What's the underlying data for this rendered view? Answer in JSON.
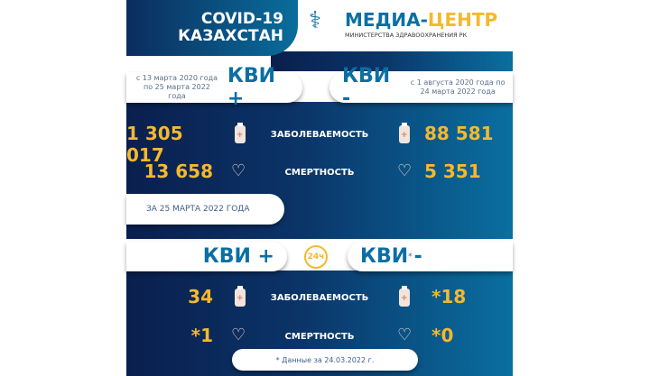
{
  "header": {
    "title_line1": "COVID-19",
    "title_line2": "КАЗАХСТАН",
    "logo_main_blue": "МЕДИА-",
    "logo_main_orange": "ЦЕНТР",
    "logo_sub": "МИНИСТЕРСТВА ЗДРАВООХРАНЕНИЯ РК"
  },
  "total": {
    "left_period": "с 13 марта 2020 года по 25 марта 2022 года",
    "left_label": "КВИ +",
    "right_label": "КВИ -",
    "right_period": "с 1 августа 2020 года по 24 марта 2022 года",
    "rows": [
      {
        "left": "1 305 017",
        "label": "ЗАБОЛЕВАЕМОСТЬ",
        "right": "88 581",
        "icon": "medicine-bottle"
      },
      {
        "left": "13 658",
        "label": "СМЕРТНОСТЬ",
        "right": "5 351",
        "icon": "heart-stethoscope"
      }
    ]
  },
  "daily": {
    "date_label": "ЗА 25 МАРТА 2022 ГОДА",
    "left_label": "КВИ +",
    "badge": "24ч",
    "right_label": "КВИ",
    "right_sup": "*",
    "right_sign": "-",
    "rows": [
      {
        "left": "34",
        "label": "ЗАБОЛЕВАЕМОСТЬ",
        "right": "*18"
      },
      {
        "left": "*1",
        "label": "СМЕРТНОСТЬ",
        "right": "*0"
      }
    ],
    "footnote": "* Данные за 24.03.2022 г."
  },
  "colors": {
    "accent_number": "#f5b82e",
    "kvi": "#0b6fa3",
    "panel_dark": "#0a1f4e",
    "panel_light": "#0a6fa0"
  }
}
